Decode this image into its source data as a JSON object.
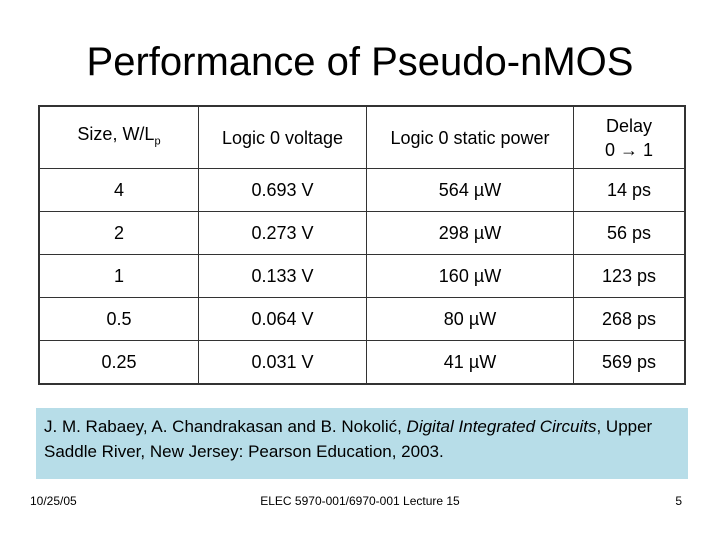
{
  "title": "Performance of Pseudo-nMOS",
  "table": {
    "header": {
      "size": "Size, W/L",
      "size_sub": "p",
      "voltage": "Logic 0 voltage",
      "power": "Logic 0 static power",
      "delay": "Delay",
      "delay_dir": "0 → 1"
    },
    "rows": [
      [
        "4",
        "0.693 V",
        "564 µW",
        "14 ps"
      ],
      [
        "2",
        "0.273 V",
        "298 µW",
        "56 ps"
      ],
      [
        "1",
        "0.133 V",
        "160 µW",
        "123 ps"
      ],
      [
        "0.5",
        "0.064 V",
        "80 µW",
        "268 ps"
      ],
      [
        "0.25",
        "0.031 V",
        "41 µW",
        "569 ps"
      ]
    ]
  },
  "citation": {
    "authors": "J. M. Rabaey, A. Chandrakasan and B. Nokolić, ",
    "book": "Digital Integrated Circuits",
    "publisher": ", Upper Saddle River, New Jersey: Pearson Education, 2003."
  },
  "footer": {
    "date": "10/25/05",
    "course": "ELEC 5970-001/6970-001 Lecture 15",
    "page": "5"
  }
}
